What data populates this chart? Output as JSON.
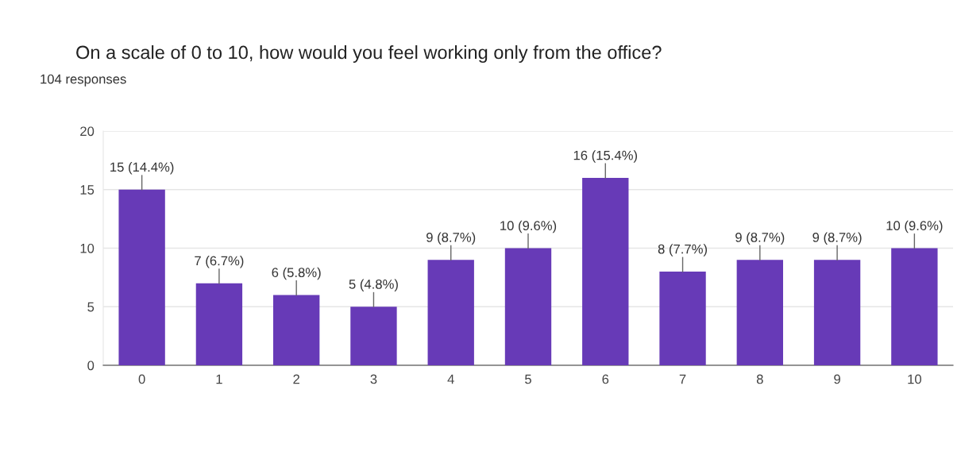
{
  "chart_data": {
    "type": "bar",
    "title": "On a scale of 0 to 10, how would you feel working only from the office?",
    "subtitle": "104 responses",
    "categories": [
      "0",
      "1",
      "2",
      "3",
      "4",
      "5",
      "6",
      "7",
      "8",
      "9",
      "10"
    ],
    "values": [
      15,
      7,
      6,
      5,
      9,
      10,
      16,
      8,
      9,
      9,
      10
    ],
    "value_labels": [
      "15 (14.4%)",
      "7 (6.7%)",
      "6 (5.8%)",
      "5 (4.8%)",
      "9 (8.7%)",
      "10 (9.6%)",
      "16 (15.4%)",
      "8 (7.7%)",
      "9 (8.7%)",
      "9 (8.7%)",
      "10 (9.6%)"
    ],
    "color": "#673ab7",
    "ylim": [
      0,
      20
    ],
    "yticks": [
      0,
      5,
      10,
      15,
      20
    ],
    "grid": "y"
  }
}
